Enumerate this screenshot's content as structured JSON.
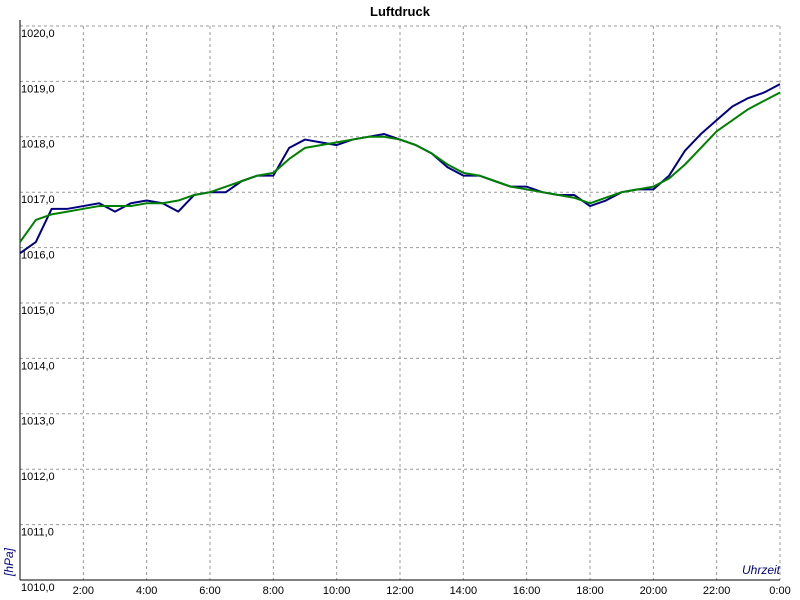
{
  "chart_data": {
    "type": "line",
    "title": "Luftdruck",
    "ylabel": "[hPa]",
    "xlabel": "Uhrzeit",
    "x": [
      0,
      0.5,
      1,
      1.5,
      2,
      2.5,
      3,
      3.5,
      4,
      4.5,
      5,
      5.5,
      6,
      6.5,
      7,
      7.5,
      8,
      8.5,
      9,
      9.5,
      10,
      10.5,
      11,
      11.5,
      12,
      12.5,
      13,
      13.5,
      14,
      14.5,
      15,
      15.5,
      16,
      16.5,
      17,
      17.5,
      18,
      18.5,
      19,
      19.5,
      20,
      20.5,
      21,
      21.5,
      22,
      22.5,
      23,
      23.5,
      24
    ],
    "series": [
      {
        "color": "#000080",
        "values": [
          1015.9,
          1016.1,
          1016.7,
          1016.7,
          1016.75,
          1016.8,
          1016.65,
          1016.8,
          1016.85,
          1016.8,
          1016.65,
          1016.95,
          1017.0,
          1017.0,
          1017.2,
          1017.3,
          1017.3,
          1017.8,
          1017.95,
          1017.9,
          1017.85,
          1017.95,
          1018.0,
          1018.05,
          1017.95,
          1017.85,
          1017.7,
          1017.45,
          1017.3,
          1017.3,
          1017.2,
          1017.1,
          1017.1,
          1017.0,
          1016.95,
          1016.95,
          1016.75,
          1016.85,
          1017.0,
          1017.05,
          1017.05,
          1017.3,
          1017.75,
          1018.05,
          1018.3,
          1018.55,
          1018.7,
          1018.8,
          1018.95
        ]
      },
      {
        "color": "#008000",
        "values": [
          1016.1,
          1016.5,
          1016.6,
          1016.65,
          1016.7,
          1016.75,
          1016.75,
          1016.75,
          1016.8,
          1016.8,
          1016.85,
          1016.95,
          1017.0,
          1017.1,
          1017.2,
          1017.3,
          1017.35,
          1017.6,
          1017.8,
          1017.85,
          1017.9,
          1017.95,
          1018.0,
          1018.0,
          1017.95,
          1017.85,
          1017.7,
          1017.5,
          1017.35,
          1017.3,
          1017.2,
          1017.1,
          1017.05,
          1017.0,
          1016.95,
          1016.9,
          1016.8,
          1016.9,
          1017.0,
          1017.05,
          1017.1,
          1017.25,
          1017.5,
          1017.8,
          1018.1,
          1018.3,
          1018.5,
          1018.65,
          1018.8
        ]
      }
    ],
    "xlim": [
      0,
      24
    ],
    "xticks": [
      {
        "value": 2,
        "label": "2:00"
      },
      {
        "value": 4,
        "label": "4:00"
      },
      {
        "value": 6,
        "label": "6:00"
      },
      {
        "value": 8,
        "label": "8:00"
      },
      {
        "value": 10,
        "label": "10:00"
      },
      {
        "value": 12,
        "label": "12:00"
      },
      {
        "value": 14,
        "label": "14:00"
      },
      {
        "value": 16,
        "label": "16:00"
      },
      {
        "value": 18,
        "label": "18:00"
      },
      {
        "value": 20,
        "label": "20:00"
      },
      {
        "value": 22,
        "label": "22:00"
      },
      {
        "value": 24,
        "label": "0:00"
      }
    ],
    "ylim": [
      1010,
      1020
    ],
    "yticks": [
      {
        "value": 1010,
        "label": "1010,0"
      },
      {
        "value": 1011,
        "label": "1011,0"
      },
      {
        "value": 1012,
        "label": "1012,0"
      },
      {
        "value": 1013,
        "label": "1013,0"
      },
      {
        "value": 1014,
        "label": "1014,0"
      },
      {
        "value": 1015,
        "label": "1015,0"
      },
      {
        "value": 1016,
        "label": "1016,0"
      },
      {
        "value": 1017,
        "label": "1017,0"
      },
      {
        "value": 1018,
        "label": "1018,0"
      },
      {
        "value": 1019,
        "label": "1019,0"
      },
      {
        "value": 1020,
        "label": "1020,0"
      }
    ],
    "grid": true
  }
}
